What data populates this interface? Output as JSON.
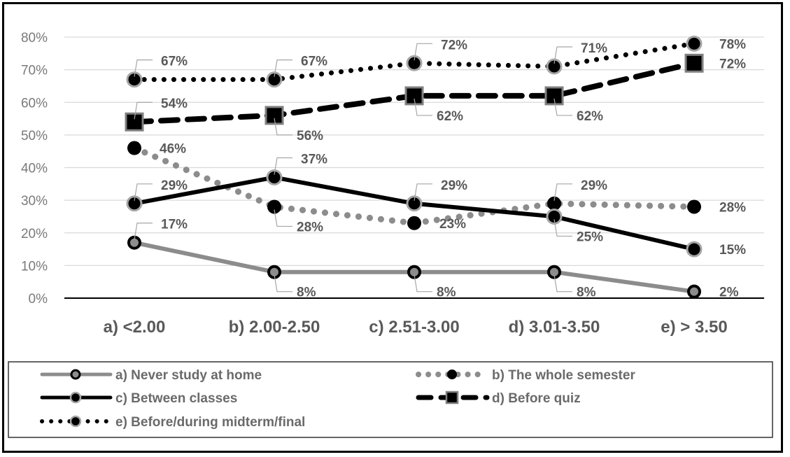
{
  "chart_data": {
    "type": "line",
    "title": "",
    "xlabel": "",
    "ylabel": "",
    "ylim": [
      0,
      80
    ],
    "yticks": [
      "0%",
      "10%",
      "20%",
      "30%",
      "40%",
      "50%",
      "60%",
      "70%",
      "80%"
    ],
    "grid": true,
    "legend_position": "bottom",
    "categories": [
      "a) <2.00",
      "b) 2.00-2.50",
      "c) 2.51-3.00",
      "d) 3.01-3.50",
      "e) > 3.50"
    ],
    "series": [
      {
        "name": "a) Never study at home",
        "values": [
          17,
          8,
          8,
          8,
          2
        ],
        "labels": [
          "17%",
          "8%",
          "8%",
          "8%",
          "2%"
        ],
        "color": "#8c8c8c",
        "marker_color": "#000000",
        "style": "solid",
        "marker": "ring"
      },
      {
        "name": "b) The whole semester",
        "values": [
          46,
          28,
          23,
          29,
          28
        ],
        "labels": [
          "46%",
          "28%",
          "23%",
          "29%",
          "28%"
        ],
        "color": "#8c8c8c",
        "marker_color": "#000000",
        "style": "round-dot",
        "marker": "blob"
      },
      {
        "name": "c) Between classes",
        "values": [
          29,
          37,
          29,
          25,
          15
        ],
        "labels": [
          "29%",
          "37%",
          "29%",
          "25%",
          "15%"
        ],
        "color": "#000000",
        "marker_color": "#000000",
        "style": "solid",
        "marker": "circle"
      },
      {
        "name": "d) Before quiz",
        "values": [
          54,
          56,
          62,
          62,
          72
        ],
        "labels": [
          "54%",
          "56%",
          "62%",
          "62%",
          "72%"
        ],
        "color": "#000000",
        "marker_color": "#000000",
        "style": "dash",
        "marker": "square"
      },
      {
        "name": "e) Before/during midterm/final",
        "values": [
          67,
          67,
          72,
          71,
          78
        ],
        "labels": [
          "67%",
          "67%",
          "72%",
          "71%",
          "78%"
        ],
        "color": "#000000",
        "marker_color": "#000000",
        "style": "dot",
        "marker": "circle"
      }
    ]
  }
}
